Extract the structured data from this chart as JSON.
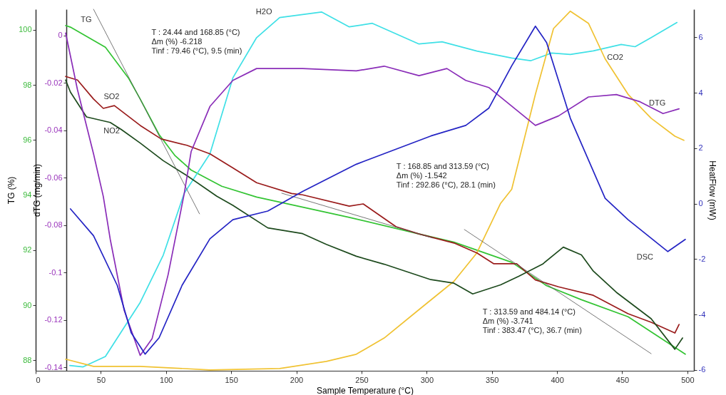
{
  "chart_data": {
    "type": "line",
    "xlabel": "Sample Temperature (°C)",
    "ylabel": "TG (%)",
    "y3label": "dTG (mg/min)",
    "y2label": "HeatFlow (mW)",
    "xlim": [
      0,
      505
    ],
    "xticks": [
      0,
      50,
      100,
      150,
      200,
      250,
      300,
      350,
      400,
      450,
      500
    ],
    "ylim": [
      87.62,
      100.75
    ],
    "yticks": [
      88,
      90,
      92,
      94,
      96,
      98,
      100
    ],
    "y3lim": [
      -0.1415,
      0.011
    ],
    "y3ticks": [
      -0.14,
      -0.12,
      -0.1,
      -0.08,
      -0.06,
      -0.04,
      -0.02,
      0
    ],
    "y2lim": [
      -6.03,
      7.01
    ],
    "y2ticks": [
      -6,
      -4,
      -2,
      0,
      2,
      4,
      6
    ],
    "series": [
      {
        "name": "TG",
        "color": "#33c433",
        "axis": "y",
        "x": [
          23.0,
          26.7,
          53.5,
          71.1,
          80.2,
          94.7,
          107.0,
          119.3,
          142.8,
          169.5,
          240.6,
          294.1,
          320.9,
          365.2,
          392.0,
          418.7,
          454.5,
          498.4
        ],
        "values": [
          100.16,
          100.1,
          99.37,
          98.26,
          97.49,
          96.2,
          95.43,
          94.91,
          94.32,
          93.93,
          93.19,
          92.59,
          92.29,
          91.56,
          90.71,
          90.2,
          89.58,
          88.22
        ]
      },
      {
        "name": "DTG",
        "color": "#8a2db8",
        "axis": "y3",
        "x": [
          23.0,
          32.1,
          44.4,
          51.9,
          57.2,
          67.9,
          80.2,
          89.3,
          101.6,
          113.9,
          119.3,
          133.7,
          151.3,
          169.5,
          204.8,
          246.0,
          267.4,
          294.1,
          315.5,
          329.9,
          347.6,
          383.4,
          401.1,
          424.1,
          445.5,
          463.6,
          481.3,
          493.6
        ],
        "values": [
          0.001,
          -0.023,
          -0.05,
          -0.068,
          -0.086,
          -0.116,
          -0.135,
          -0.128,
          -0.101,
          -0.067,
          -0.049,
          -0.03,
          -0.019,
          -0.014,
          -0.014,
          -0.015,
          -0.013,
          -0.017,
          -0.014,
          -0.019,
          -0.022,
          -0.038,
          -0.034,
          -0.026,
          -0.025,
          -0.028,
          -0.033,
          -0.031
        ]
      },
      {
        "name": "DSC",
        "color": "#2424c4",
        "axis": "y2",
        "x": [
          26.7,
          44.4,
          62.6,
          73.3,
          84.0,
          94.7,
          112.3,
          133.7,
          151.3,
          178.1,
          204.8,
          246.0,
          267.4,
          303.2,
          330.0,
          347.6,
          365.2,
          383.4,
          392.0,
          410.2,
          436.9,
          454.5,
          485.0,
          498.4
        ],
        "values": [
          -0.19,
          -1.16,
          -2.95,
          -4.66,
          -5.43,
          -4.84,
          -2.95,
          -1.27,
          -0.58,
          -0.27,
          0.44,
          1.42,
          1.8,
          2.44,
          2.82,
          3.44,
          4.97,
          6.4,
          5.81,
          3.08,
          0.19,
          -0.58,
          -1.73,
          -1.29
        ]
      },
      {
        "name": "H2O",
        "color": "#3fe0e6",
        "axis": "y",
        "x": [
          26.2,
          36.4,
          53.5,
          80.2,
          97.9,
          113.9,
          133.7,
          151.3,
          169.5,
          187.2,
          219.3,
          240.6,
          258.3,
          294.1,
          311.8,
          338.5,
          365.2,
          379.7,
          395.7,
          410.2,
          427.8,
          449.2,
          459.9,
          472.2,
          492.0
        ],
        "values": [
          87.81,
          87.76,
          88.14,
          90.1,
          91.82,
          94.06,
          95.5,
          98.26,
          99.72,
          100.45,
          100.65,
          100.11,
          100.24,
          99.49,
          99.57,
          99.23,
          98.98,
          98.88,
          99.16,
          99.11,
          99.24,
          99.47,
          99.39,
          99.72,
          100.27
        ]
      },
      {
        "name": "CO2",
        "color": "#f0c232",
        "axis": "y",
        "x": [
          23.0,
          44.4,
          80.2,
          133.7,
          187.2,
          223.0,
          246.0,
          267.4,
          294.1,
          320.9,
          338.5,
          356.7,
          365.2,
          383.4,
          397.3,
          410.2,
          424.1,
          436.9,
          454.5,
          472.2,
          490.4,
          497.3
        ],
        "values": [
          88.04,
          87.78,
          87.78,
          87.65,
          87.7,
          87.96,
          88.22,
          88.81,
          89.84,
          90.87,
          91.9,
          93.7,
          94.21,
          97.66,
          100.05,
          100.68,
          100.24,
          98.95,
          97.66,
          96.79,
          96.14,
          95.99
        ]
      },
      {
        "name": "SO2",
        "color": "#9a1c1c",
        "axis": "y",
        "x": [
          23.0,
          32.1,
          44.4,
          51.9,
          60.4,
          80.2,
          96.3,
          116.0,
          133.7,
          151.3,
          169.5,
          196.3,
          204.8,
          240.6,
          251.3,
          276.5,
          294.1,
          320.9,
          338.5,
          351.3,
          369.0,
          383.4,
          401.1,
          427.8,
          454.5,
          472.2,
          490.4,
          493.6
        ],
        "values": [
          98.31,
          98.18,
          97.49,
          97.15,
          97.25,
          96.53,
          96.04,
          95.81,
          95.5,
          94.99,
          94.45,
          94.06,
          94.01,
          93.6,
          93.68,
          92.85,
          92.59,
          92.26,
          91.9,
          91.51,
          91.51,
          90.92,
          90.67,
          90.36,
          89.69,
          89.38,
          88.99,
          89.3
        ]
      },
      {
        "name": "NO2",
        "color": "#1d4a1d",
        "axis": "y",
        "x": [
          23.0,
          26.7,
          39.0,
          57.2,
          65.8,
          80.2,
          97.9,
          116.0,
          139.0,
          151.3,
          178.1,
          204.8,
          223.0,
          246.0,
          267.4,
          303.2,
          320.9,
          335.3,
          356.7,
          370.6,
          388.8,
          404.8,
          418.7,
          427.8,
          445.5,
          472.2,
          490.4,
          496.3
        ],
        "values": [
          98.18,
          97.74,
          96.84,
          96.64,
          96.38,
          95.89,
          95.25,
          94.71,
          93.96,
          93.63,
          92.81,
          92.6,
          92.21,
          91.78,
          91.49,
          90.93,
          90.8,
          90.41,
          90.74,
          91.05,
          91.49,
          92.11,
          91.83,
          91.24,
          90.47,
          89.51,
          88.4,
          88.81
        ]
      },
      {
        "color": "#555555",
        "axis": "y",
        "x": [
          44.4,
          125.7
        ],
        "values": [
          100.75,
          93.32
        ]
      },
      {
        "color": "#555555",
        "axis": "y",
        "x": [
          188.8,
          304.8
        ],
        "values": [
          94.07,
          92.44
        ]
      },
      {
        "color": "#555555",
        "axis": "y",
        "x": [
          328.9,
          472.2
        ],
        "values": [
          92.75,
          88.24
        ]
      }
    ],
    "annotations": [
      "T : 24.44 and 168.85 (°C)\nΔm (%) -6.218\nTinf : 79.46 (°C), 9.5 (min)",
      "T : 168.85 and 313.59 (°C)\nΔm (%) -1.542\nTinf : 292.86 (°C), 28.1 (min)",
      "T : 313.59 and 484.14 (°C)\nΔm (%) -3.741\nTinf : 383.47 (°C), 36.7 (min)"
    ]
  }
}
